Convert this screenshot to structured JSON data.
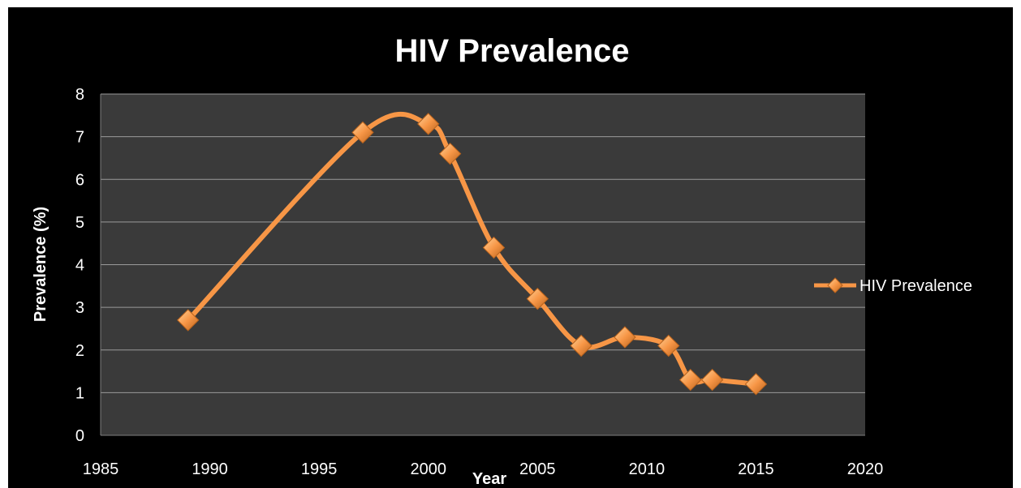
{
  "chart_data": {
    "type": "line",
    "title": "HIV Prevalence",
    "xlabel": "Year",
    "ylabel": "Prevalence (%)",
    "xlim": [
      1985,
      2020
    ],
    "ylim": [
      0,
      8
    ],
    "xticks": [
      1985,
      1990,
      1995,
      2000,
      2005,
      2010,
      2015,
      2020
    ],
    "yticks": [
      0,
      1,
      2,
      3,
      4,
      5,
      6,
      7,
      8
    ],
    "grid": true,
    "smooth": true,
    "legend_position": "right",
    "series": [
      {
        "name": "HIV Prevalence",
        "color": "#f79646",
        "marker": "diamond",
        "x": [
          1989,
          1997,
          2000,
          2001,
          2003,
          2005,
          2007,
          2009,
          2011,
          2012,
          2013,
          2015
        ],
        "y": [
          2.7,
          7.1,
          7.3,
          6.6,
          4.4,
          3.2,
          2.1,
          2.3,
          2.1,
          1.3,
          1.3,
          1.2
        ]
      }
    ],
    "colors": {
      "background": "#000000",
      "plot_area": "#3a3a3a",
      "gridline": "#9a9a9a",
      "text": "#ffffff"
    }
  }
}
